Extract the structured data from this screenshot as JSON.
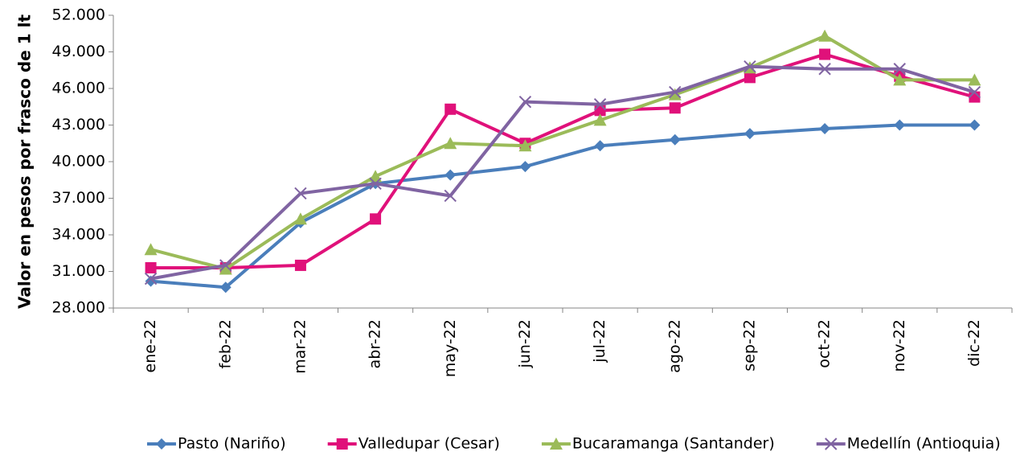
{
  "chart_data": {
    "type": "line",
    "y_label": "Valor en pesos por frasco de 1 lt",
    "categories": [
      "ene-22",
      "feb-22",
      "mar-22",
      "abr-22",
      "may-22",
      "jun-22",
      "jul-22",
      "ago-22",
      "sep-22",
      "oct-22",
      "nov-22",
      "dic-22"
    ],
    "series": [
      {
        "name": "Pasto (Nariño)",
        "color": "#4a7ebb",
        "marker": "diamond",
        "values": [
          30.2,
          29.7,
          35.0,
          38.2,
          38.9,
          39.6,
          41.3,
          41.8,
          42.3,
          42.7,
          43.0,
          43.0
        ]
      },
      {
        "name": "Valledupar (Cesar)",
        "color": "#e0117a",
        "marker": "square",
        "values": [
          31.3,
          31.3,
          31.5,
          35.3,
          44.3,
          41.5,
          44.2,
          44.4,
          46.9,
          48.8,
          47.0,
          45.3
        ]
      },
      {
        "name": "Bucaramanga (Santander)",
        "color": "#9bbb59",
        "marker": "triangle",
        "values": [
          32.8,
          31.2,
          35.3,
          38.8,
          41.5,
          41.3,
          43.4,
          45.5,
          47.7,
          50.3,
          46.7,
          46.7
        ]
      },
      {
        "name": "Medellín (Antioquia)",
        "color": "#8064a2",
        "marker": "x",
        "values": [
          30.4,
          31.5,
          37.4,
          38.2,
          37.2,
          44.9,
          44.7,
          45.7,
          47.8,
          47.6,
          47.6,
          45.7
        ]
      }
    ],
    "ylim": [
      28,
      52
    ],
    "yticks": [
      {
        "value": 28,
        "label": "28.000"
      },
      {
        "value": 31,
        "label": "31.000"
      },
      {
        "value": 34,
        "label": "34.000"
      },
      {
        "value": 37,
        "label": "37.000"
      },
      {
        "value": 40,
        "label": "40.000"
      },
      {
        "value": 43,
        "label": "43.000"
      },
      {
        "value": 46,
        "label": "46.000"
      },
      {
        "value": 49,
        "label": "49.000"
      },
      {
        "value": 52,
        "label": "52.000"
      }
    ],
    "grid": false,
    "legend": "bottom"
  }
}
